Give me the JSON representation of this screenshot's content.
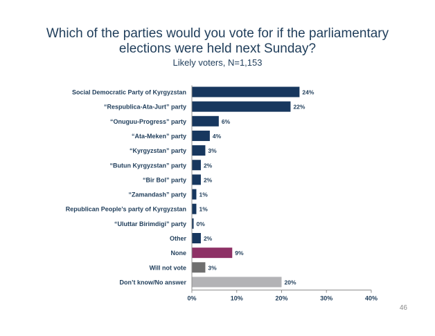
{
  "title": "Which of the parties would you vote for if the parliamentary elections were held next Sunday?",
  "subtitle": "Likely voters, N=1,153",
  "page_number": "46",
  "colors": {
    "default_bar": "#17375e",
    "none_bar": "#8e3166",
    "will_not_vote_bar": "#6f6f6f",
    "dont_know_bar": "#b3b3b6",
    "text": "#1f3d5a"
  },
  "chart_data": {
    "type": "bar",
    "orientation": "horizontal",
    "categories": [
      "Social Democratic Party of Kyrgyzstan",
      "“Respublica-Ata-Jurt” party",
      "“Onuguu-Progress” party",
      "“Ata-Meken” party",
      "“Kyrgyzstan” party",
      "“Butun Kyrgyzstan” party",
      "“Bir Bol” party",
      "“Zamandash” party",
      "Republican People’s party of Kyrgyzstan",
      "“Uluttar Birimdigi” party",
      "Other",
      "None",
      "Will not vote",
      "Don’t know/No answer"
    ],
    "values": [
      24,
      22,
      6,
      4,
      3,
      2,
      2,
      1,
      1,
      0,
      2,
      9,
      3,
      20
    ],
    "value_labels": [
      "24%",
      "22%",
      "6%",
      "4%",
      "3%",
      "2%",
      "2%",
      "1%",
      "1%",
      "0%",
      "2%",
      "9%",
      "3%",
      "20%"
    ],
    "bar_colors": [
      "#17375e",
      "#17375e",
      "#17375e",
      "#17375e",
      "#17375e",
      "#17375e",
      "#17375e",
      "#17375e",
      "#17375e",
      "#17375e",
      "#17375e",
      "#8e3166",
      "#6f6f6f",
      "#b3b3b6"
    ],
    "xlim": [
      0,
      40
    ],
    "xticks": [
      0,
      10,
      20,
      30,
      40
    ],
    "xtick_labels": [
      "0%",
      "10%",
      "20%",
      "30%",
      "40%"
    ],
    "grid": false,
    "legend": "none"
  }
}
